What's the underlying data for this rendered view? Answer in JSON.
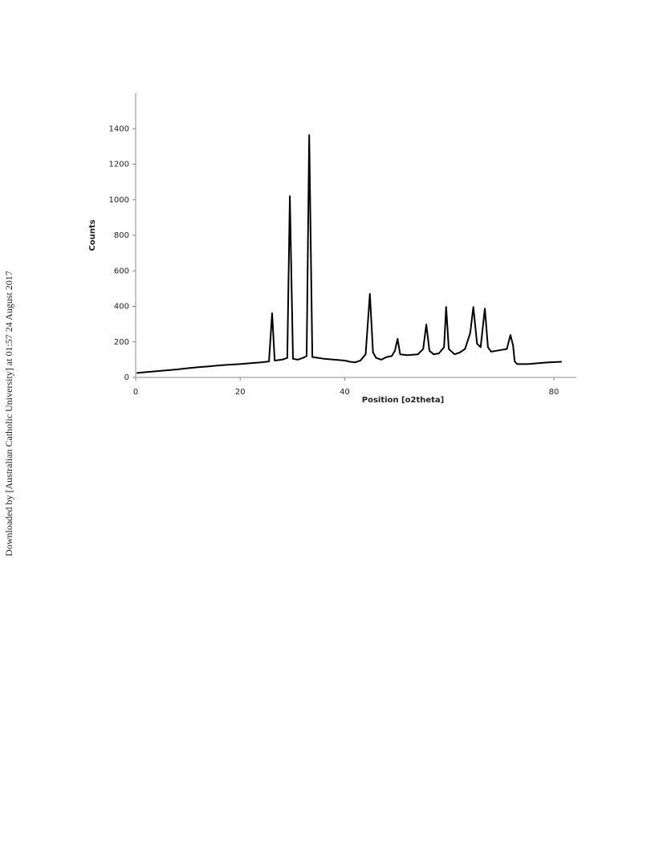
{
  "side_note": "Downloaded by [Australian Catholic University] at 01:57 24 August 2017",
  "chart_data": {
    "type": "line",
    "y_label": "Counts",
    "x_label": "Position [o2theta]",
    "xlim": [
      0,
      84.3
    ],
    "xticks": [
      0,
      20,
      40,
      80
    ],
    "ylim": [
      0,
      1600
    ],
    "yticks": [
      0,
      200,
      400,
      600,
      800,
      1000,
      1200,
      1400
    ],
    "series": [
      {
        "color": "#000000",
        "x": [
          0.2,
          2,
          4,
          6,
          8,
          10,
          12,
          14,
          16,
          18,
          20,
          22,
          24,
          25.5,
          26.1,
          26.6,
          28,
          29,
          29.5,
          30.1,
          31,
          32,
          32.7,
          33.2,
          33.8,
          35,
          36,
          38,
          40,
          41,
          42,
          43,
          44,
          44.8,
          45.4,
          46,
          47,
          48,
          49,
          49.6,
          50.1,
          50.6,
          52,
          54,
          55,
          55.6,
          56.2,
          57,
          58,
          59,
          59.4,
          59.9,
          61,
          62,
          63,
          64,
          64.6,
          65.3,
          66,
          66.8,
          67.4,
          68,
          69,
          70,
          71,
          71.7,
          72.2,
          72.5,
          73,
          75,
          77,
          79,
          81.5
        ],
        "values": [
          25,
          30,
          35,
          40,
          45,
          52,
          58,
          62,
          68,
          72,
          75,
          80,
          85,
          90,
          361,
          95,
          100,
          110,
          1020,
          105,
          100,
          110,
          120,
          1364,
          115,
          110,
          105,
          100,
          95,
          88,
          85,
          95,
          130,
          470,
          140,
          110,
          100,
          115,
          120,
          150,
          217,
          130,
          125,
          130,
          160,
          298,
          150,
          130,
          135,
          170,
          397,
          160,
          130,
          140,
          160,
          250,
          397,
          190,
          170,
          388,
          170,
          145,
          150,
          155,
          160,
          239,
          180,
          90,
          75,
          75,
          80,
          85,
          88
        ]
      }
    ]
  }
}
